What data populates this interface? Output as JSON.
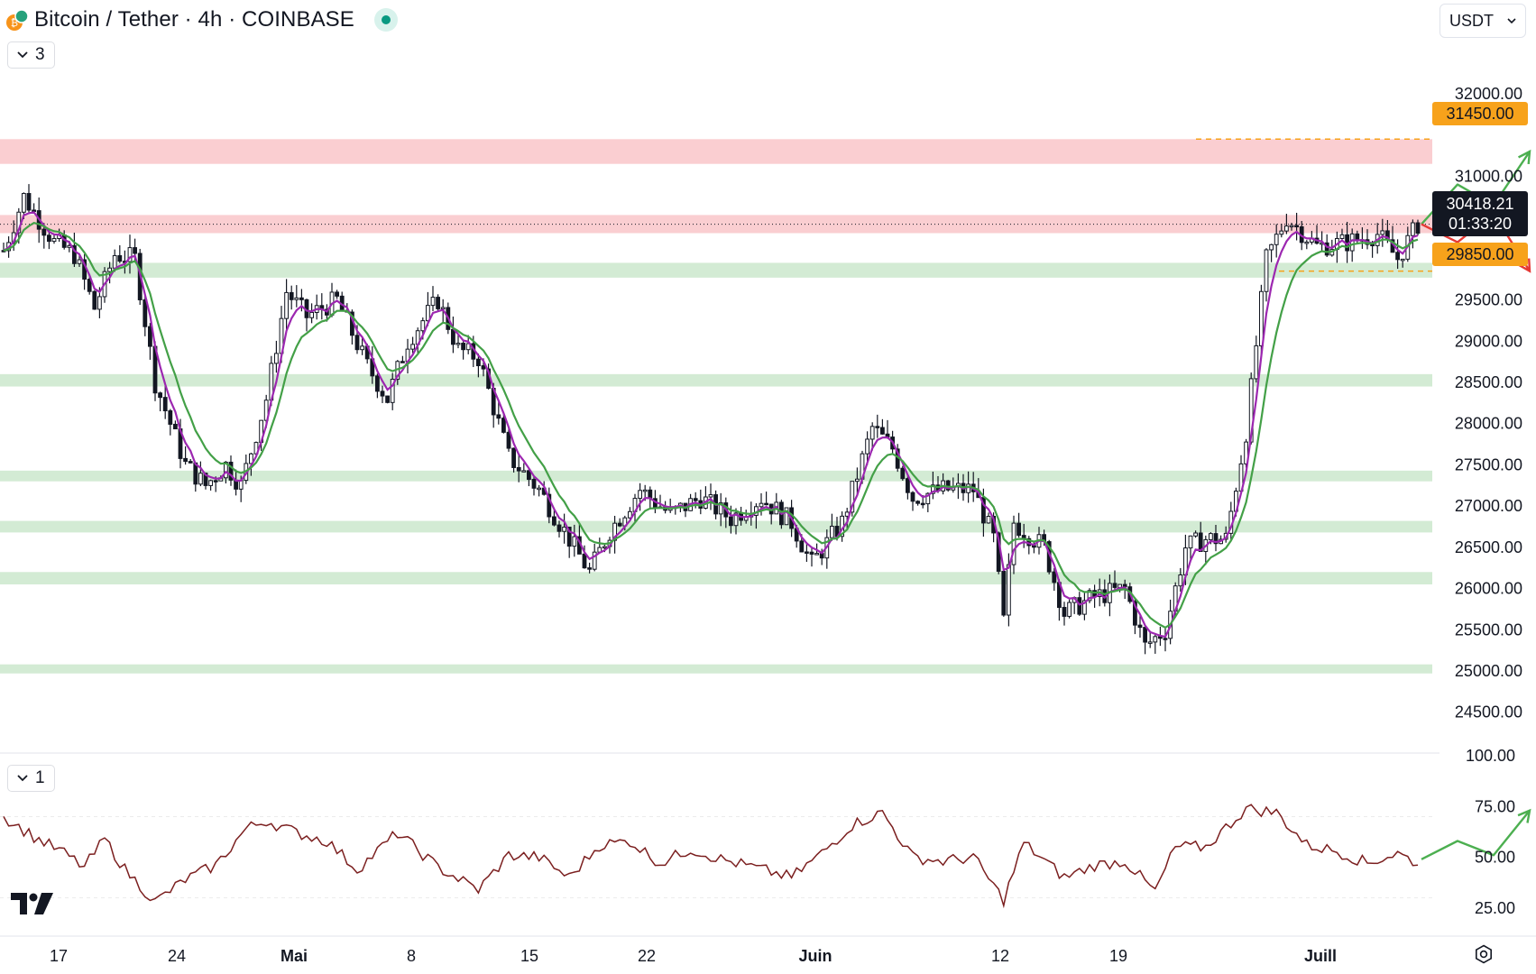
{
  "header": {
    "symbol_title": "Bitcoin / Tether · 4h · COINBASE",
    "coin_icon": "bitcoin-tether-icon",
    "status_icon": "live-dot-icon"
  },
  "indicator_toggles": {
    "main_count": "3",
    "rsi_count": "1",
    "icon": "chevron-down-icon"
  },
  "currency_selector": {
    "value": "USDT",
    "icon": "chevron-down-icon"
  },
  "price_axis": {
    "ticks": [
      "32000.00",
      "31000.00",
      "30000.00",
      "29500.00",
      "29000.00",
      "28500.00",
      "28000.00",
      "27500.00",
      "27000.00",
      "26500.00",
      "26000.00",
      "25500.00",
      "25000.00",
      "24500.00"
    ]
  },
  "price_tags": {
    "resistance": "31450.00",
    "current_price": "30418.21",
    "countdown": "01:33:20",
    "support": "29850.00"
  },
  "rsi_axis": {
    "ticks": [
      "100.00",
      "75.00",
      "50.00",
      "25.00"
    ]
  },
  "time_axis": {
    "labels": [
      "17",
      "24",
      "Mai",
      "8",
      "15",
      "22",
      "Juin",
      "12",
      "19",
      "Juill"
    ]
  },
  "colors": {
    "bullish_zone": "#c8e6c9",
    "bearish_zone": "#f9c2c6",
    "ema_fast": "#9c27b0",
    "ema_slow": "#43a047",
    "rsi_line": "#7b1f1f",
    "alert_tag": "#f7a21b",
    "arrow_up": "#4caf50",
    "arrow_down": "#e53935"
  },
  "chart_data": {
    "type": "candlestick",
    "timeframe": "4h",
    "y_range": [
      24300,
      32350
    ],
    "resistance_zones": [
      [
        31150,
        31450
      ],
      [
        30310,
        30530
      ]
    ],
    "support_zones": [
      [
        29770,
        29950
      ],
      [
        28450,
        28600
      ],
      [
        27300,
        27430
      ],
      [
        26680,
        26820
      ],
      [
        26050,
        26200
      ],
      [
        24970,
        25080
      ]
    ],
    "key_levels": {
      "upper": 31450,
      "lower": 29850,
      "last": 30418.21
    },
    "price_path": [
      [
        0,
        30100
      ],
      [
        4,
        30750
      ],
      [
        10,
        30200
      ],
      [
        14,
        30050
      ],
      [
        18,
        29400
      ],
      [
        22,
        30050
      ],
      [
        26,
        30000
      ],
      [
        30,
        28500
      ],
      [
        36,
        27500
      ],
      [
        40,
        27250
      ],
      [
        44,
        27500
      ],
      [
        47,
        27250
      ],
      [
        52,
        28300
      ],
      [
        56,
        29600
      ],
      [
        60,
        29300
      ],
      [
        66,
        29500
      ],
      [
        72,
        28700
      ],
      [
        76,
        28300
      ],
      [
        80,
        29000
      ],
      [
        86,
        29500
      ],
      [
        90,
        28900
      ],
      [
        94,
        28800
      ],
      [
        100,
        27600
      ],
      [
        106,
        27200
      ],
      [
        112,
        26600
      ],
      [
        116,
        26200
      ],
      [
        120,
        26700
      ],
      [
        126,
        27200
      ],
      [
        132,
        26900
      ],
      [
        138,
        27100
      ],
      [
        144,
        26850
      ],
      [
        150,
        27100
      ],
      [
        156,
        26800
      ],
      [
        160,
        26300
      ],
      [
        166,
        26800
      ],
      [
        172,
        27950
      ],
      [
        176,
        27700
      ],
      [
        180,
        27100
      ],
      [
        186,
        27200
      ],
      [
        192,
        27200
      ],
      [
        196,
        26600
      ],
      [
        198,
        25600
      ],
      [
        200,
        26800
      ],
      [
        206,
        26500
      ],
      [
        210,
        25700
      ],
      [
        216,
        25900
      ],
      [
        222,
        26000
      ],
      [
        226,
        25300
      ],
      [
        230,
        25500
      ],
      [
        234,
        26500
      ],
      [
        238,
        26600
      ],
      [
        242,
        26600
      ],
      [
        246,
        27900
      ],
      [
        250,
        30000
      ],
      [
        254,
        30500
      ],
      [
        260,
        30150
      ],
      [
        266,
        30200
      ],
      [
        272,
        30300
      ],
      [
        276,
        30000
      ],
      [
        280,
        30420
      ]
    ],
    "ema_fast_offset": 4,
    "ema_slow_offset": 9,
    "rsi": {
      "range": [
        20,
        100
      ],
      "path": [
        [
          0,
          70
        ],
        [
          6,
          60
        ],
        [
          12,
          52
        ],
        [
          16,
          45
        ],
        [
          20,
          59
        ],
        [
          24,
          44
        ],
        [
          30,
          28
        ],
        [
          36,
          39
        ],
        [
          42,
          46
        ],
        [
          48,
          64
        ],
        [
          52,
          68
        ],
        [
          58,
          62
        ],
        [
          64,
          58
        ],
        [
          70,
          44
        ],
        [
          78,
          62
        ],
        [
          86,
          45
        ],
        [
          94,
          34
        ],
        [
          100,
          51
        ],
        [
          106,
          50
        ],
        [
          112,
          40
        ],
        [
          118,
          56
        ],
        [
          124,
          58
        ],
        [
          130,
          47
        ],
        [
          136,
          54
        ],
        [
          142,
          49
        ],
        [
          150,
          44
        ],
        [
          156,
          40
        ],
        [
          162,
          52
        ],
        [
          168,
          66
        ],
        [
          174,
          72
        ],
        [
          180,
          50
        ],
        [
          186,
          48
        ],
        [
          192,
          50
        ],
        [
          198,
          29
        ],
        [
          202,
          57
        ],
        [
          210,
          40
        ],
        [
          216,
          46
        ],
        [
          222,
          48
        ],
        [
          228,
          33
        ],
        [
          232,
          55
        ],
        [
          238,
          55
        ],
        [
          246,
          74
        ],
        [
          252,
          72
        ],
        [
          258,
          56
        ],
        [
          264,
          53
        ],
        [
          270,
          47
        ],
        [
          276,
          52
        ],
        [
          280,
          47
        ]
      ]
    },
    "projection_arrows": {
      "bullish": [
        [
          30418,
          0
        ],
        [
          30900,
          1
        ],
        [
          30650,
          2
        ],
        [
          31300,
          3
        ]
      ],
      "bearish": [
        [
          30418,
          0
        ],
        [
          30200,
          1
        ],
        [
          30550,
          2
        ],
        [
          29850,
          3
        ]
      ],
      "rsi_bullish": [
        [
          49,
          0
        ],
        [
          58,
          1
        ],
        [
          51,
          2
        ],
        [
          73,
          3
        ]
      ]
    }
  }
}
